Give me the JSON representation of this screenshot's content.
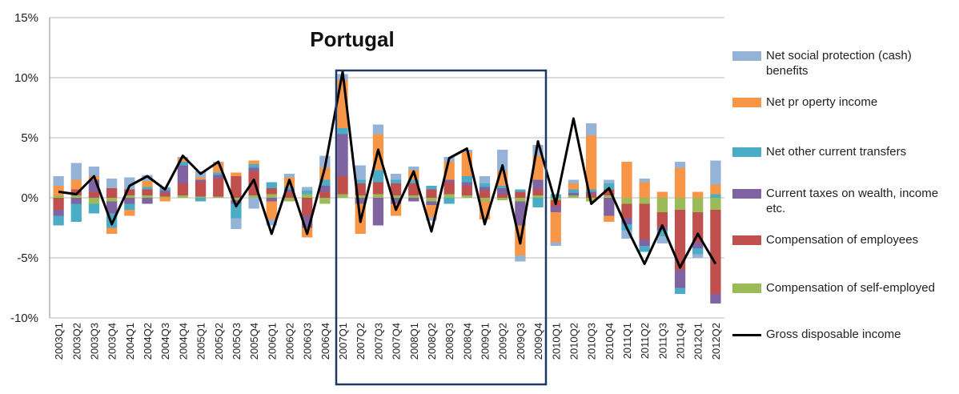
{
  "chart_data": {
    "type": "bar",
    "title": "Portugal",
    "categories": [
      "2003Q1",
      "2003Q2",
      "2003Q3",
      "2003Q4",
      "2004Q1",
      "2004Q2",
      "2004Q3",
      "2004Q4",
      "2005Q1",
      "2005Q2",
      "2005Q3",
      "2005Q4",
      "2006Q1",
      "2006Q2",
      "2006Q3",
      "2006Q4",
      "2007Q1",
      "2007Q2",
      "2007Q3",
      "2007Q4",
      "2008Q1",
      "2008Q2",
      "2008Q3",
      "2008Q4",
      "2009Q1",
      "2009Q2",
      "2009Q3",
      "2009Q4",
      "2010Q1",
      "2010Q2",
      "2010Q3",
      "2010Q4",
      "2011Q1",
      "2011Q2",
      "2011Q3",
      "2011Q4",
      "2012Q1",
      "2012Q2"
    ],
    "ylim": [
      -10,
      15
    ],
    "yticks": [
      {
        "value": -10,
        "label": "-10%"
      },
      {
        "value": -5,
        "label": "-5%"
      },
      {
        "value": 0,
        "label": "0%"
      },
      {
        "value": 5,
        "label": "5%"
      },
      {
        "value": 10,
        "label": "10%"
      },
      {
        "value": 15,
        "label": "15%"
      }
    ],
    "grid": true,
    "legend": "right",
    "series": [
      {
        "name": "Net social protection (cash) benefits",
        "color": "#95b3d7",
        "type": "bar",
        "values": [
          0.8,
          1.4,
          0.8,
          0.8,
          1.0,
          0.5,
          0.1,
          0.1,
          0.5,
          0.1,
          -0.9,
          -0.9,
          -0.5,
          0.3,
          0.3,
          1.0,
          0.5,
          1.2,
          0.8,
          0.5,
          0.3,
          -0.3,
          0.4,
          0.2,
          0.6,
          1.8,
          -0.5,
          0.9,
          -0.3,
          0.3,
          1.0,
          0.3,
          -0.7,
          0.3,
          -0.6,
          0.5,
          -0.3,
          2.0
        ]
      },
      {
        "name": "Net pr operty income",
        "color": "#f79646",
        "type": "bar",
        "values": [
          0.8,
          0.8,
          0.3,
          -0.5,
          -0.5,
          0.5,
          -0.3,
          0.3,
          0.2,
          0.8,
          0.3,
          0.3,
          -1.5,
          0.8,
          -0.8,
          1.0,
          4.0,
          -2.5,
          3.0,
          -1.0,
          0.8,
          -1.0,
          1.5,
          2.0,
          -1.5,
          1.2,
          -2.5,
          2.0,
          -2.5,
          0.5,
          4.5,
          -0.5,
          3.0,
          1.3,
          0.5,
          2.5,
          0.5,
          0.8
        ]
      },
      {
        "name": "Net other current transfers",
        "color": "#4bacc6",
        "type": "bar",
        "values": [
          -0.8,
          -1.5,
          -0.8,
          -1.2,
          -0.5,
          0.2,
          0.2,
          0.3,
          -0.3,
          0.2,
          -1.2,
          0.3,
          0.5,
          0.2,
          0.3,
          0.5,
          0.5,
          0.3,
          1.0,
          0.3,
          0.3,
          0.3,
          -0.5,
          0.5,
          0.3,
          0.2,
          0.2,
          -0.8,
          0.3,
          0.3,
          0.2,
          0.5,
          -0.5,
          -0.5,
          -0.5,
          -0.5,
          -0.5,
          0.3
        ]
      },
      {
        "name": "Current taxes on wealth, income etc.",
        "color": "#8064a2",
        "type": "bar",
        "values": [
          -0.5,
          -0.5,
          1.0,
          -1.0,
          -0.5,
          -0.5,
          0.2,
          1.5,
          0.2,
          0.3,
          -0.3,
          0.3,
          -0.3,
          0.2,
          -1.0,
          0.5,
          3.5,
          -0.5,
          -2.3,
          -0.5,
          -0.3,
          -0.3,
          0.2,
          0.3,
          0.3,
          0.5,
          -2.0,
          0.8,
          -0.5,
          0.2,
          0.2,
          -1.5,
          -0.5,
          -0.5,
          -0.3,
          -1.5,
          -0.5,
          -0.8
        ]
      },
      {
        "name": "Compensation of employees",
        "color": "#c0504d",
        "type": "bar",
        "values": [
          -1.0,
          0.5,
          0.5,
          0.8,
          0.5,
          0.5,
          0.3,
          1.0,
          1.2,
          1.5,
          1.8,
          2.0,
          0.5,
          0.5,
          -1.5,
          0.5,
          1.5,
          1.0,
          1.0,
          1.0,
          1.0,
          0.7,
          1.0,
          0.8,
          0.6,
          0.3,
          0.5,
          0.5,
          -0.5,
          0.0,
          0.3,
          0.5,
          -1.2,
          -3.0,
          -1.2,
          -5.0,
          -2.5,
          -7.0
        ]
      },
      {
        "name": "Compensation of self-employed",
        "color": "#9bbb59",
        "type": "bar",
        "values": [
          0.2,
          0.2,
          -0.5,
          -0.3,
          0.2,
          0.2,
          0.1,
          0.2,
          0.1,
          0.1,
          -0.2,
          0.2,
          0.3,
          -0.3,
          0.3,
          -0.5,
          0.3,
          0.2,
          0.3,
          0.2,
          0.2,
          -0.3,
          0.3,
          0.2,
          -0.3,
          -0.2,
          -0.3,
          0.2,
          -0.2,
          0.2,
          -0.3,
          0.2,
          -0.5,
          -0.5,
          -1.2,
          -1.0,
          -1.2,
          -1.0
        ]
      },
      {
        "name": "Gross disposable income",
        "color": "#000000",
        "type": "line",
        "values": [
          0.5,
          0.3,
          1.8,
          -2.2,
          1.0,
          1.8,
          0.7,
          3.5,
          2.0,
          3.0,
          -0.7,
          1.5,
          -3.0,
          1.5,
          -3.0,
          2.5,
          10.5,
          -2.0,
          4.0,
          -1.0,
          2.2,
          -2.8,
          3.3,
          4.1,
          -2.2,
          2.7,
          -3.8,
          4.7,
          -0.5,
          6.6,
          -0.5,
          0.8,
          -2.5,
          -5.5,
          -2.3,
          -5.8,
          -3.0,
          -5.5
        ]
      }
    ]
  }
}
